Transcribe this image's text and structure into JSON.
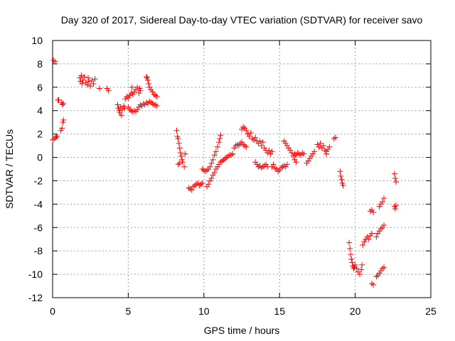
{
  "chart_data": {
    "type": "scatter",
    "title": "Day 320 of 2017, Sidereal Day-to-day VTEC variation (SDTVAR) for receiver savo",
    "xlabel": "GPS time / hours",
    "ylabel": "SDTVAR / TECUs",
    "xlim": [
      0,
      25
    ],
    "ylim": [
      -12,
      10
    ],
    "xticks": [
      0,
      5,
      10,
      15,
      20,
      25
    ],
    "yticks": [
      -12,
      -10,
      -8,
      -6,
      -4,
      -2,
      0,
      2,
      4,
      6,
      8,
      10
    ],
    "grid": true,
    "legend": "none",
    "marker": "plus",
    "color": "#ff0000",
    "series": [
      {
        "points": [
          [
            0.0,
            1.5
          ],
          [
            0.05,
            8.3
          ],
          [
            0.1,
            1.6
          ],
          [
            0.15,
            8.2
          ],
          [
            0.2,
            1.7
          ],
          [
            0.25,
            1.8
          ],
          [
            0.3,
            1.8
          ],
          [
            0.35,
            4.9
          ],
          [
            0.4,
            4.9
          ],
          [
            0.55,
            2.3
          ],
          [
            0.6,
            4.7
          ],
          [
            0.62,
            2.5
          ],
          [
            0.65,
            4.5
          ],
          [
            0.68,
            3.0
          ],
          [
            0.7,
            4.6
          ],
          [
            0.72,
            3.2
          ],
          [
            1.8,
            6.8
          ],
          [
            1.85,
            6.5
          ],
          [
            1.9,
            7.0
          ],
          [
            1.95,
            6.3
          ],
          [
            2.0,
            6.6
          ],
          [
            2.1,
            6.9
          ],
          [
            2.2,
            6.4
          ],
          [
            2.3,
            6.2
          ],
          [
            2.35,
            6.8
          ],
          [
            2.4,
            6.5
          ],
          [
            2.5,
            6.1
          ],
          [
            2.6,
            6.6
          ],
          [
            2.7,
            6.3
          ],
          [
            2.8,
            6.7
          ],
          [
            3.1,
            5.9
          ],
          [
            3.6,
            5.9
          ],
          [
            3.7,
            5.7
          ],
          [
            4.3,
            4.5
          ],
          [
            4.35,
            4.2
          ],
          [
            4.4,
            4.0
          ],
          [
            4.45,
            3.8
          ],
          [
            4.5,
            4.3
          ],
          [
            4.55,
            3.6
          ],
          [
            4.6,
            4.1
          ],
          [
            4.7,
            4.4
          ],
          [
            4.75,
            4.2
          ],
          [
            4.8,
            5.0
          ],
          [
            4.9,
            5.2
          ],
          [
            5.0,
            5.1
          ],
          [
            5.1,
            5.3
          ],
          [
            5.2,
            5.5
          ],
          [
            5.25,
            6.0
          ],
          [
            5.3,
            5.4
          ],
          [
            5.4,
            5.6
          ],
          [
            5.5,
            5.8
          ],
          [
            5.6,
            6.0
          ],
          [
            5.7,
            5.5
          ],
          [
            5.75,
            5.9
          ],
          [
            5.8,
            5.7
          ],
          [
            5.0,
            4.3
          ],
          [
            5.1,
            4.1
          ],
          [
            5.2,
            4.0
          ],
          [
            5.3,
            3.9
          ],
          [
            5.4,
            4.0
          ],
          [
            5.5,
            3.9
          ],
          [
            5.6,
            4.1
          ],
          [
            5.7,
            4.3
          ],
          [
            5.8,
            4.5
          ],
          [
            5.9,
            4.4
          ],
          [
            6.0,
            4.6
          ],
          [
            6.1,
            4.5
          ],
          [
            6.2,
            4.7
          ],
          [
            6.3,
            4.6
          ],
          [
            6.4,
            4.8
          ],
          [
            6.5,
            4.7
          ],
          [
            6.6,
            4.6
          ],
          [
            6.7,
            4.5
          ],
          [
            6.8,
            4.5
          ],
          [
            6.9,
            4.4
          ],
          [
            6.2,
            6.9
          ],
          [
            6.25,
            6.8
          ],
          [
            6.3,
            6.6
          ],
          [
            6.35,
            6.3
          ],
          [
            6.4,
            6.0
          ],
          [
            6.5,
            5.8
          ],
          [
            6.6,
            5.6
          ],
          [
            6.7,
            5.4
          ],
          [
            6.8,
            5.3
          ],
          [
            6.9,
            5.2
          ],
          [
            8.2,
            2.3
          ],
          [
            8.25,
            1.8
          ],
          [
            8.3,
            1.6
          ],
          [
            8.35,
            1.2
          ],
          [
            8.4,
            0.8
          ],
          [
            8.45,
            0.4
          ],
          [
            8.5,
            0.1
          ],
          [
            8.55,
            -0.2
          ],
          [
            8.6,
            -0.4
          ],
          [
            8.3,
            -0.6
          ],
          [
            8.4,
            -0.5
          ],
          [
            8.7,
            -0.8
          ],
          [
            8.75,
            0.3
          ],
          [
            9.0,
            -2.6
          ],
          [
            9.1,
            -2.7
          ],
          [
            9.2,
            -2.8
          ],
          [
            9.3,
            -2.5
          ],
          [
            9.4,
            -2.4
          ],
          [
            9.5,
            -2.3
          ],
          [
            9.6,
            -2.2
          ],
          [
            9.7,
            -2.4
          ],
          [
            9.8,
            -2.3
          ],
          [
            9.9,
            -2.2
          ],
          [
            9.9,
            -1.0
          ],
          [
            10.0,
            -1.1
          ],
          [
            10.1,
            -1.2
          ],
          [
            10.2,
            -1.1
          ],
          [
            10.3,
            -1.0
          ],
          [
            10.4,
            -0.8
          ],
          [
            10.5,
            -0.5
          ],
          [
            10.6,
            -0.2
          ],
          [
            10.7,
            0.2
          ],
          [
            10.8,
            0.5
          ],
          [
            10.9,
            0.9
          ],
          [
            11.0,
            1.3
          ],
          [
            11.05,
            1.6
          ],
          [
            11.1,
            1.9
          ],
          [
            10.2,
            -2.5
          ],
          [
            10.3,
            -2.3
          ],
          [
            10.4,
            -2.0
          ],
          [
            10.5,
            -1.8
          ],
          [
            10.6,
            -1.5
          ],
          [
            10.7,
            -1.3
          ],
          [
            10.8,
            -1.0
          ],
          [
            10.9,
            -0.8
          ],
          [
            11.0,
            -0.6
          ],
          [
            11.1,
            -0.4
          ],
          [
            11.2,
            -0.3
          ],
          [
            11.3,
            -0.2
          ],
          [
            11.4,
            -0.1
          ],
          [
            11.5,
            0.0
          ],
          [
            11.6,
            0.1
          ],
          [
            11.7,
            0.2
          ],
          [
            11.8,
            0.2
          ],
          [
            11.9,
            0.3
          ],
          [
            12.0,
            0.8
          ],
          [
            12.1,
            1.0
          ],
          [
            12.2,
            1.1
          ],
          [
            12.3,
            1.0
          ],
          [
            12.4,
            1.2
          ],
          [
            12.5,
            1.3
          ],
          [
            12.6,
            1.1
          ],
          [
            12.7,
            1.0
          ],
          [
            12.8,
            0.9
          ],
          [
            12.5,
            2.4
          ],
          [
            12.6,
            2.6
          ],
          [
            12.7,
            2.5
          ],
          [
            12.8,
            2.3
          ],
          [
            12.9,
            2.0
          ],
          [
            13.0,
            1.8
          ],
          [
            13.1,
            2.1
          ],
          [
            13.2,
            1.6
          ],
          [
            13.3,
            1.5
          ],
          [
            13.4,
            1.7
          ],
          [
            13.5,
            1.4
          ],
          [
            13.6,
            1.2
          ],
          [
            13.7,
            1.4
          ],
          [
            13.8,
            1.0
          ],
          [
            13.9,
            1.3
          ],
          [
            14.0,
            0.8
          ],
          [
            14.1,
            0.6
          ],
          [
            14.2,
            0.4
          ],
          [
            14.3,
            0.6
          ],
          [
            14.4,
            0.3
          ],
          [
            14.5,
            0.5
          ],
          [
            13.4,
            -0.4
          ],
          [
            13.5,
            -0.6
          ],
          [
            13.6,
            -0.8
          ],
          [
            13.7,
            -0.7
          ],
          [
            13.8,
            -0.9
          ],
          [
            13.9,
            -0.8
          ],
          [
            14.0,
            -0.7
          ],
          [
            14.1,
            -0.6
          ],
          [
            14.2,
            -0.8
          ],
          [
            14.5,
            -0.8
          ],
          [
            14.6,
            -0.6
          ],
          [
            14.7,
            -0.9
          ],
          [
            14.8,
            -1.0
          ],
          [
            14.9,
            -1.2
          ],
          [
            15.0,
            -1.1
          ],
          [
            15.1,
            -0.9
          ],
          [
            15.2,
            -0.8
          ],
          [
            15.3,
            -0.7
          ],
          [
            15.4,
            -0.8
          ],
          [
            15.5,
            -0.6
          ],
          [
            15.3,
            1.4
          ],
          [
            15.4,
            1.2
          ],
          [
            15.5,
            1.0
          ],
          [
            15.6,
            0.8
          ],
          [
            15.7,
            0.6
          ],
          [
            15.8,
            0.4
          ],
          [
            15.9,
            0.1
          ],
          [
            16.0,
            -0.2
          ],
          [
            16.1,
            -0.4
          ],
          [
            16.0,
            0.3
          ],
          [
            16.1,
            0.2
          ],
          [
            16.2,
            0.4
          ],
          [
            16.3,
            0.3
          ],
          [
            16.4,
            0.2
          ],
          [
            16.5,
            0.4
          ],
          [
            16.6,
            0.3
          ],
          [
            16.8,
            -0.5
          ],
          [
            16.9,
            -0.3
          ],
          [
            17.0,
            -0.1
          ],
          [
            17.1,
            0.1
          ],
          [
            17.2,
            0.3
          ],
          [
            17.3,
            0.5
          ],
          [
            17.5,
            1.1
          ],
          [
            17.6,
            0.9
          ],
          [
            17.7,
            1.2
          ],
          [
            17.8,
            0.8
          ],
          [
            17.9,
            1.0
          ],
          [
            18.0,
            0.6
          ],
          [
            18.1,
            0.5
          ],
          [
            18.2,
            0.7
          ],
          [
            18.3,
            0.9
          ],
          [
            18.1,
            0.3
          ],
          [
            18.6,
            1.6
          ],
          [
            18.7,
            1.7
          ],
          [
            19.0,
            -1.2
          ],
          [
            19.05,
            -1.6
          ],
          [
            19.1,
            -1.9
          ],
          [
            19.15,
            -2.2
          ],
          [
            19.2,
            -2.4
          ],
          [
            19.6,
            -7.3
          ],
          [
            19.65,
            -7.8
          ],
          [
            19.7,
            -8.3
          ],
          [
            19.75,
            -8.7
          ],
          [
            19.8,
            -9.0
          ],
          [
            19.85,
            -9.3
          ],
          [
            19.9,
            -9.5
          ],
          [
            19.95,
            -9.4
          ],
          [
            20.0,
            -9.2
          ],
          [
            20.1,
            -9.5
          ],
          [
            20.2,
            -9.8
          ],
          [
            20.3,
            -10.0
          ],
          [
            20.4,
            -9.6
          ],
          [
            20.45,
            -9.2
          ],
          [
            20.5,
            -7.5
          ],
          [
            20.6,
            -7.2
          ],
          [
            20.7,
            -7.0
          ],
          [
            20.8,
            -6.8
          ],
          [
            20.9,
            -7.0
          ],
          [
            21.0,
            -6.7
          ],
          [
            21.1,
            -6.5
          ],
          [
            21.0,
            -4.6
          ],
          [
            21.1,
            -4.5
          ],
          [
            21.2,
            -4.7
          ],
          [
            21.1,
            -10.8
          ],
          [
            21.2,
            -10.9
          ],
          [
            21.4,
            -10.2
          ],
          [
            21.5,
            -10.1
          ],
          [
            21.6,
            -9.9
          ],
          [
            21.7,
            -9.7
          ],
          [
            21.8,
            -9.5
          ],
          [
            21.9,
            -9.4
          ],
          [
            21.4,
            -6.8
          ],
          [
            21.5,
            -6.5
          ],
          [
            21.6,
            -6.3
          ],
          [
            21.7,
            -6.1
          ],
          [
            21.8,
            -6.0
          ],
          [
            21.9,
            -5.8
          ],
          [
            21.6,
            -4.2
          ],
          [
            21.7,
            -4.0
          ],
          [
            21.8,
            -3.8
          ],
          [
            21.9,
            -3.5
          ],
          [
            22.6,
            -1.4
          ],
          [
            22.65,
            -1.8
          ],
          [
            22.7,
            -2.1
          ],
          [
            22.6,
            -4.2
          ],
          [
            22.65,
            -4.4
          ],
          [
            22.7,
            -4.1
          ]
        ]
      }
    ]
  }
}
